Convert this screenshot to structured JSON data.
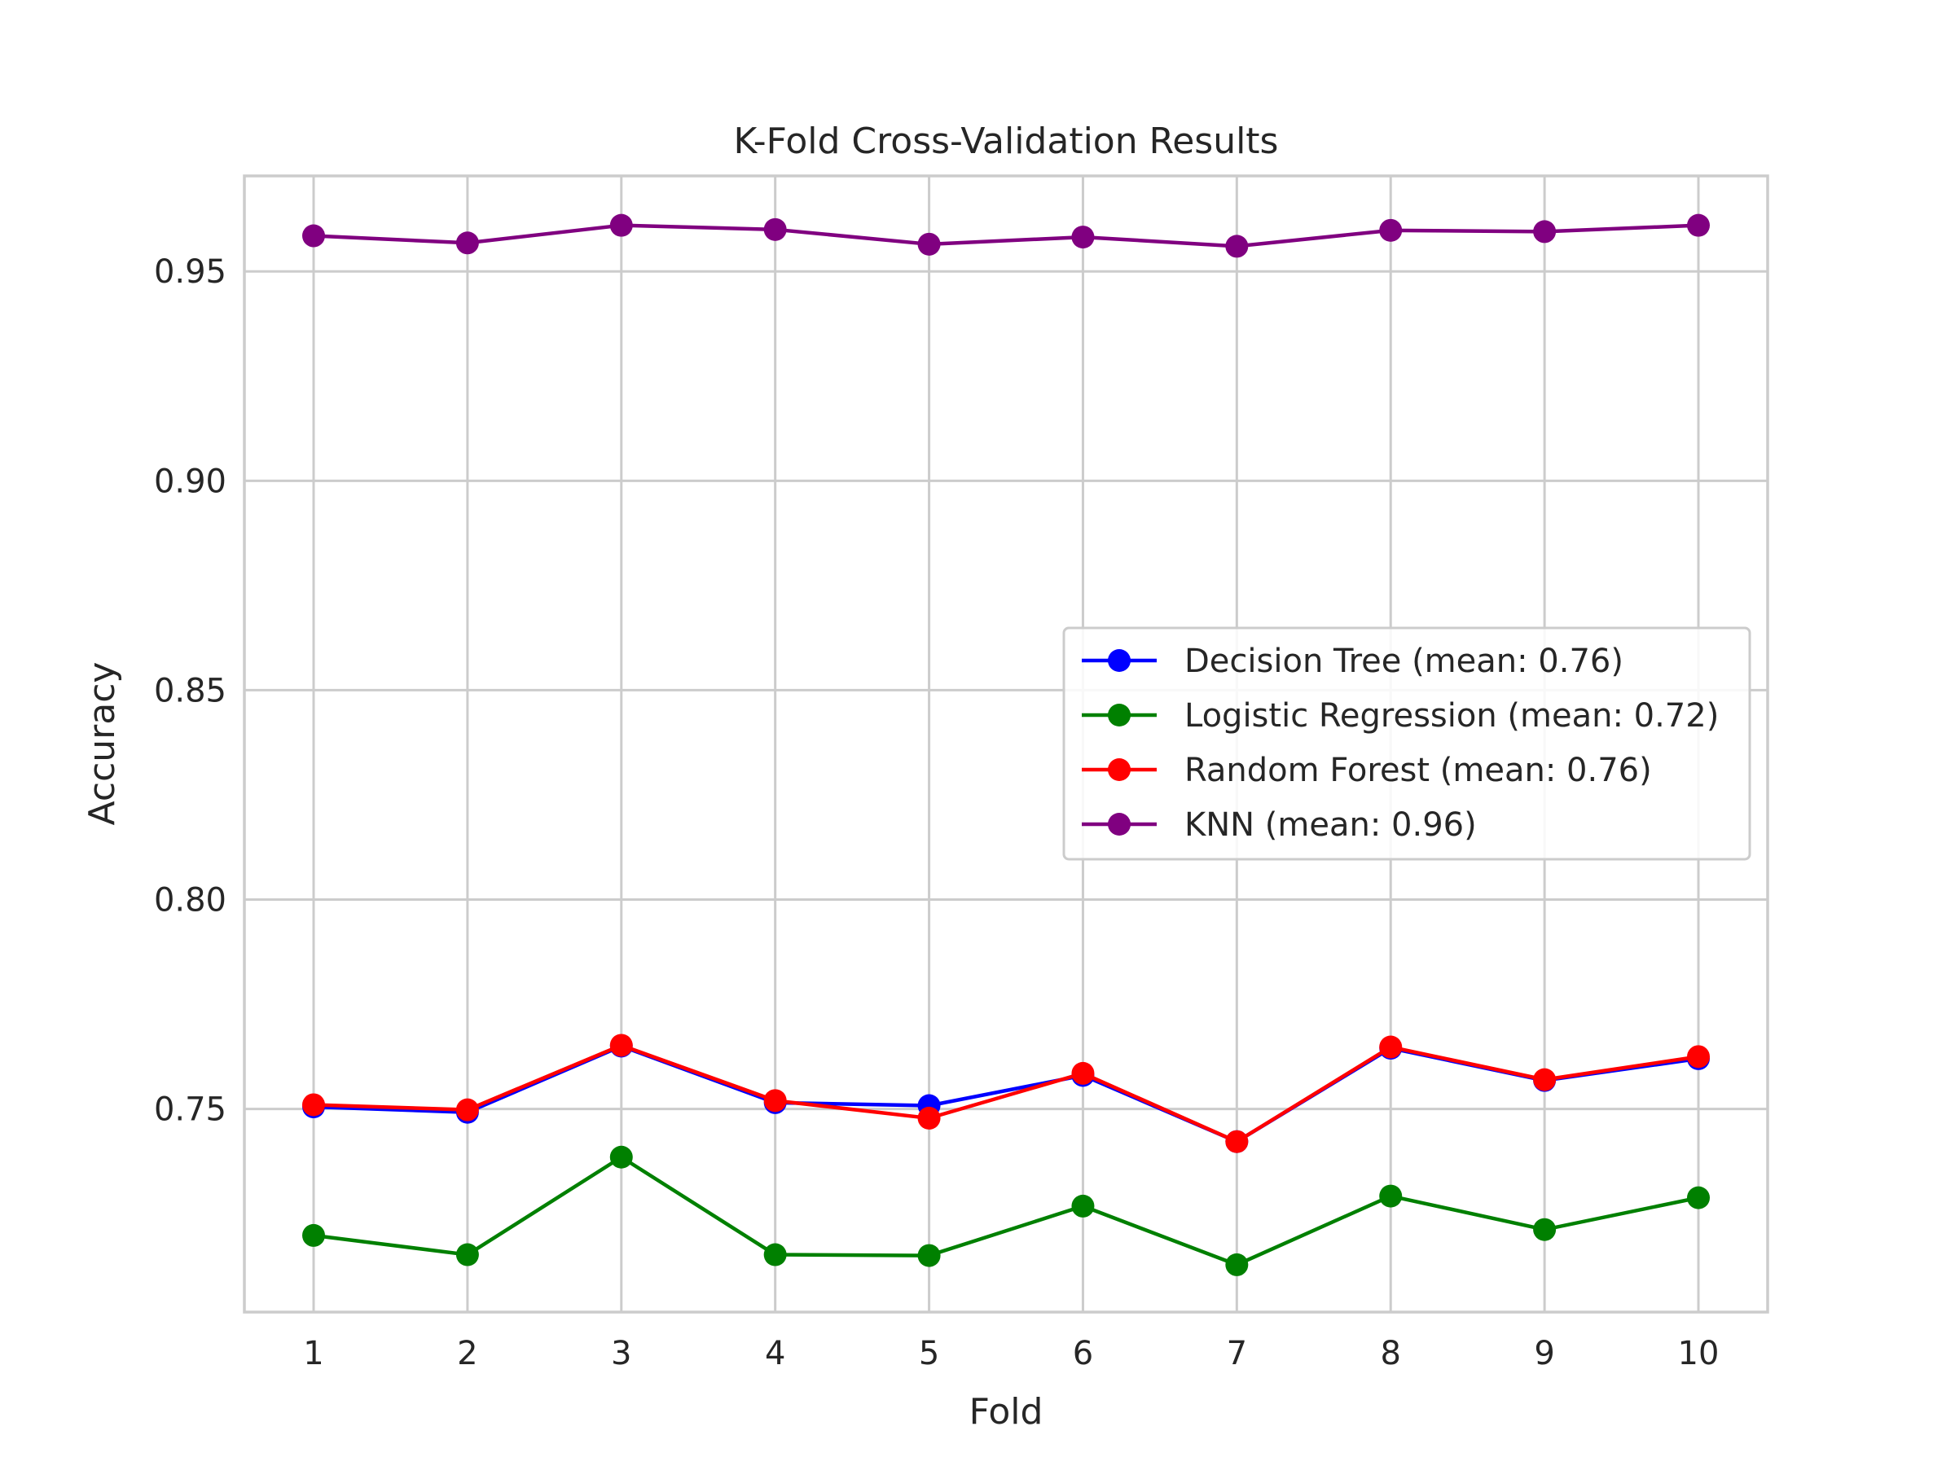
{
  "chart_data": {
    "type": "line",
    "title": "K-Fold Cross-Validation Results",
    "xlabel": "Fold",
    "ylabel": "Accuracy",
    "x": [
      1,
      2,
      3,
      4,
      5,
      6,
      7,
      8,
      9,
      10
    ],
    "xlim": [
      0.55,
      10.45
    ],
    "ylim": [
      0.7015,
      0.9728
    ],
    "yticks": [
      0.75,
      0.8,
      0.85,
      0.9,
      0.95
    ],
    "ytick_labels": [
      "0.75",
      "0.80",
      "0.85",
      "0.90",
      "0.95"
    ],
    "grid": true,
    "legend_position": "center-right",
    "series": [
      {
        "name": "Decision Tree (mean: 0.76)",
        "color": "#0000ff",
        "values": [
          0.7505,
          0.7492,
          0.765,
          0.7515,
          0.7508,
          0.758,
          0.7422,
          0.7645,
          0.7568,
          0.762
        ]
      },
      {
        "name": "Logistic Regression (mean: 0.72)",
        "color": "#008000",
        "values": [
          0.7198,
          0.7152,
          0.7385,
          0.7152,
          0.715,
          0.7268,
          0.7128,
          0.7292,
          0.7212,
          0.7288
        ]
      },
      {
        "name": "Random Forest (mean: 0.76)",
        "color": "#ff0000",
        "values": [
          0.751,
          0.7498,
          0.7652,
          0.752,
          0.7478,
          0.7585,
          0.7422,
          0.7648,
          0.757,
          0.7625
        ]
      },
      {
        "name": "KNN (mean: 0.96)",
        "color": "#800080",
        "values": [
          0.9585,
          0.9568,
          0.961,
          0.96,
          0.9565,
          0.9582,
          0.956,
          0.9598,
          0.9595,
          0.961
        ]
      }
    ]
  }
}
